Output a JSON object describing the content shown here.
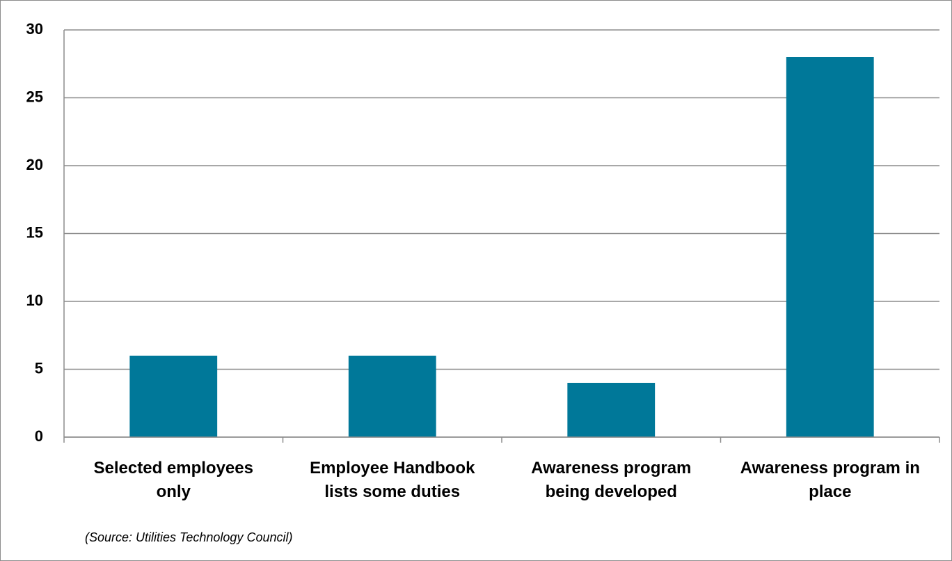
{
  "chart_data": {
    "type": "bar",
    "categories": [
      "Selected employees only",
      "Employee Handbook lists some duties",
      "Awareness program being developed",
      "Awareness program in place"
    ],
    "values": [
      6,
      6,
      4,
      28
    ],
    "color": "#007899",
    "ylim": [
      0,
      30
    ],
    "yticks": [
      0,
      5,
      10,
      15,
      20,
      25,
      30
    ],
    "grid": true,
    "annotation": "(Source:  Utilities Technology Council)"
  }
}
